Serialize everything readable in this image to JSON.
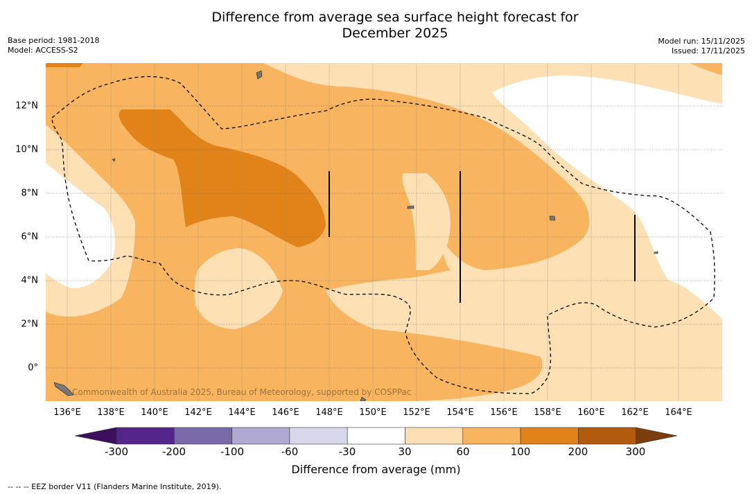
{
  "title_line1": "Difference from average sea surface height forecast for",
  "title_line2": "December 2025",
  "meta": {
    "base_period": "Base period: 1981-2018",
    "model": "Model: ACCESS-S2",
    "model_run": "Model run: 15/11/2025",
    "issued": "Issued: 17/11/2025"
  },
  "attribution": "Commonwealth of Australia 2025, Bureau of Meteorology, supported by COSPPac",
  "axes": {
    "longitude_labels": [
      "136°E",
      "138°E",
      "140°E",
      "142°E",
      "144°E",
      "146°E",
      "148°E",
      "150°E",
      "152°E",
      "154°E",
      "156°E",
      "158°E",
      "160°E",
      "162°E",
      "164°E"
    ],
    "latitude_labels": [
      "12°N",
      "10°N",
      "8°N",
      "6°N",
      "4°N",
      "2°N",
      "0°"
    ]
  },
  "colorbar": {
    "title": "Difference from average (mm)",
    "ticks": [
      "-300",
      "-200",
      "-100",
      "-60",
      "-30",
      "30",
      "60",
      "100",
      "200",
      "300"
    ],
    "colors": [
      "#3b0f5c",
      "#54258a",
      "#7b6aaa",
      "#aea8d2",
      "#d7d8ec",
      "#ffffff",
      "#fddfb3",
      "#f9b45f",
      "#e2821a",
      "#b25a0e",
      "#7a3d0b"
    ]
  },
  "footnote": "--  --  -- EEZ border V11 (Flanders Marine Institute, 2019).",
  "legend_colors": {
    "band_30_60": "#fde0b4",
    "band_60_100": "#f9b460",
    "band_100_200": "#e2831a",
    "land": "#777777"
  }
}
